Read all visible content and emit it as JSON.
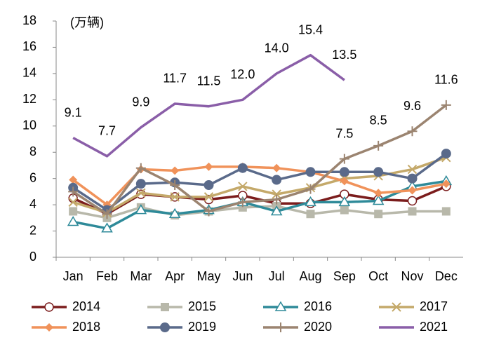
{
  "chart_data": {
    "type": "line",
    "annotation": "(万辆)",
    "categories": [
      "Jan",
      "Feb",
      "Mar",
      "Apr",
      "May",
      "Jun",
      "Jul",
      "Aug",
      "Sep",
      "Oct",
      "Nov",
      "Dec"
    ],
    "ylim": [
      0,
      18
    ],
    "yticks": [
      0,
      2,
      4,
      6,
      8,
      10,
      12,
      14,
      16,
      18
    ],
    "grid": false,
    "legend": "bottom",
    "series": [
      {
        "name": "2014",
        "color": "#7b1c1c",
        "marker": "open-circle",
        "values": [
          4.5,
          3.3,
          4.8,
          4.6,
          4.4,
          4.7,
          4.1,
          4.1,
          4.8,
          4.4,
          4.3,
          5.4
        ]
      },
      {
        "name": "2015",
        "color": "#b8b8aa",
        "marker": "square",
        "values": [
          3.5,
          3.0,
          3.8,
          3.2,
          3.5,
          3.8,
          3.9,
          3.3,
          3.6,
          3.3,
          3.5,
          3.5
        ]
      },
      {
        "name": "2016",
        "color": "#2e8a99",
        "marker": "open-triangle",
        "values": [
          2.7,
          2.2,
          3.6,
          3.3,
          3.6,
          4.2,
          3.5,
          4.2,
          4.2,
          4.3,
          5.4,
          5.8
        ]
      },
      {
        "name": "2017",
        "color": "#c4a96a",
        "marker": "x",
        "values": [
          4.2,
          3.4,
          4.9,
          4.6,
          4.6,
          5.4,
          4.8,
          5.3,
          6.0,
          6.2,
          6.7,
          7.6
        ]
      },
      {
        "name": "2018",
        "color": "#f0925a",
        "marker": "diamond",
        "values": [
          5.9,
          4.0,
          6.7,
          6.6,
          6.9,
          6.9,
          6.8,
          6.5,
          5.8,
          4.9,
          5.1,
          5.6
        ]
      },
      {
        "name": "2019",
        "color": "#5a6a8a",
        "marker": "circle",
        "values": [
          5.3,
          3.6,
          5.6,
          5.7,
          5.5,
          6.8,
          5.9,
          6.5,
          6.5,
          6.5,
          6.0,
          7.9
        ]
      },
      {
        "name": "2020",
        "color": "#9b8470",
        "marker": "plus",
        "values": [
          5.0,
          3.3,
          6.8,
          5.5,
          3.5,
          4.2,
          4.4,
          5.2,
          7.5,
          8.5,
          9.6,
          11.6
        ],
        "value_labels": [
          null,
          null,
          null,
          null,
          null,
          null,
          null,
          null,
          "7.5",
          "8.5",
          "9.6",
          "11.6"
        ]
      },
      {
        "name": "2021",
        "color": "#8a5ea8",
        "marker": "none",
        "values": [
          9.1,
          7.7,
          9.9,
          11.7,
          11.5,
          12.0,
          14.0,
          15.4,
          13.5,
          null,
          null,
          null
        ],
        "value_labels": [
          "9.1",
          "7.7",
          "9.9",
          "11.7",
          "11.5",
          "12.0",
          "14.0",
          "15.4",
          "13.5",
          null,
          null,
          null
        ]
      }
    ]
  }
}
